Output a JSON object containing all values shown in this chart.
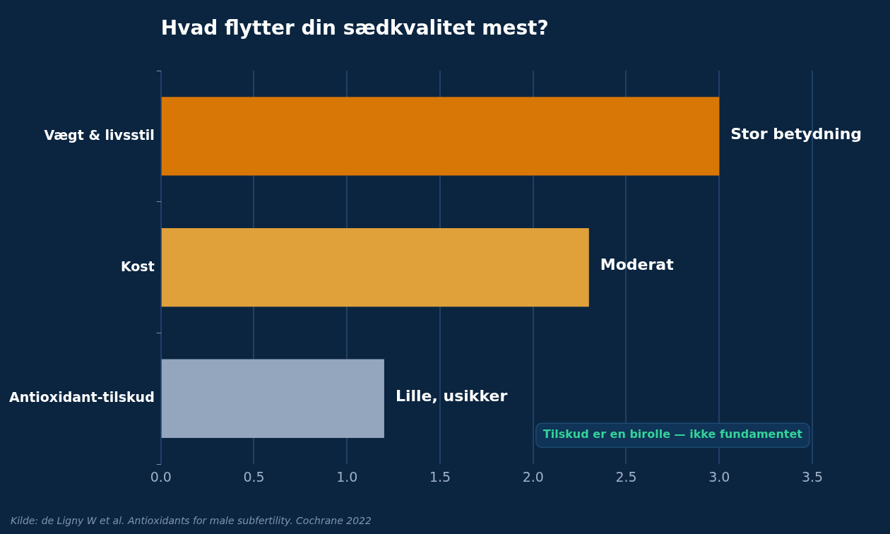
{
  "chart_data": {
    "type": "bar",
    "orientation": "horizontal",
    "title": "Hvad flytter din sædkvalitet mest?",
    "categories": [
      "Vægt & livsstil",
      "Kost",
      "Antioxidant-tilskud"
    ],
    "values": [
      3.0,
      2.3,
      1.2
    ],
    "colors": [
      "#d97706",
      "#e0a03a",
      "#94a5be"
    ],
    "value_labels": [
      "Stor betydning",
      "Moderat",
      "Lille, usikker"
    ],
    "xlim": [
      0,
      3.5
    ],
    "xticks": [
      {
        "value": 0,
        "label": "0.0"
      },
      {
        "value": 0.5,
        "label": "0.5"
      },
      {
        "value": 1,
        "label": "1.0"
      },
      {
        "value": 1.5,
        "label": "1.5"
      },
      {
        "value": 2,
        "label": "2.0"
      },
      {
        "value": 2.5,
        "label": "2.5"
      },
      {
        "value": 3,
        "label": "3.0"
      },
      {
        "value": 3.5,
        "label": "3.5"
      }
    ],
    "grid": "x",
    "legend": false,
    "annotations": [
      "Tilskud er en birolle — ikke fundamentet",
      "Kilde: de Ligny W et al. Antioxidants for male subfertility. Cochrane 2022"
    ]
  }
}
